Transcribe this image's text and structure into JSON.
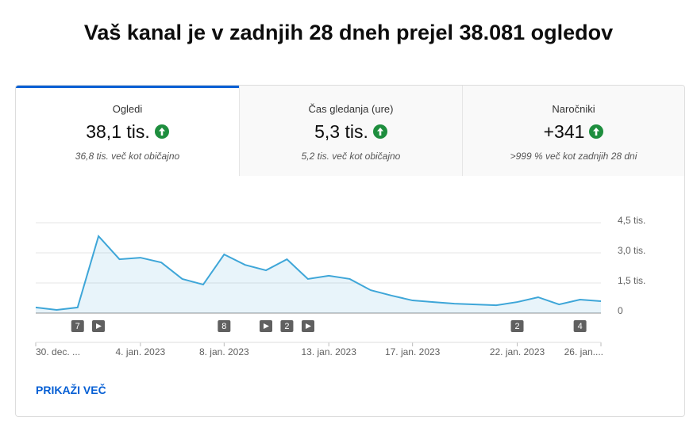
{
  "header": {
    "title": "Vaš kanal je v zadnjih 28 dneh prejel 38.081 ogledov"
  },
  "tabs": [
    {
      "label": "Ogledi",
      "value": "38,1 tis.",
      "note": "36,8 tis. več kot običajno"
    },
    {
      "label": "Čas gledanja (ure)",
      "value": "5,3 tis.",
      "note": "5,2 tis. več kot običajno"
    },
    {
      "label": "Naročniki",
      "value": "+341",
      "note": ">999 % več kot zadnjih 28 dni"
    }
  ],
  "chart_data": {
    "type": "area",
    "categories": [
      "30. dec. ...",
      null,
      null,
      null,
      null,
      "4. jan. 2023",
      null,
      null,
      null,
      "8. jan. 2023",
      null,
      null,
      null,
      null,
      "13. jan. 2023",
      null,
      null,
      null,
      "17. jan. 2023",
      null,
      null,
      null,
      null,
      "22. jan. 2023",
      null,
      null,
      null,
      "26. jan...."
    ],
    "values": [
      280,
      160,
      280,
      3830,
      2680,
      2760,
      2520,
      1700,
      1420,
      2920,
      2400,
      2130,
      2680,
      1700,
      1860,
      1700,
      1140,
      870,
      630,
      550,
      470,
      430,
      390,
      550,
      790,
      430,
      670,
      590
    ],
    "annotations": [
      null,
      null,
      "7",
      null,
      null,
      null,
      null,
      null,
      null,
      "8",
      null,
      null,
      "2",
      null,
      null,
      null,
      null,
      null,
      null,
      null,
      null,
      null,
      null,
      "2",
      null,
      null,
      "4",
      null
    ],
    "color": "#3ea6d8",
    "ylim": [
      0,
      4500
    ],
    "yticks": [
      0,
      {
        "value": 1500,
        "label": "1,5 tis."
      },
      {
        "value": 3000,
        "label": "3,0 tis."
      },
      {
        "value": 4500,
        "label": "4,5 tis."
      }
    ],
    "grid": true
  },
  "link": "PRIKAŽI VEČ"
}
